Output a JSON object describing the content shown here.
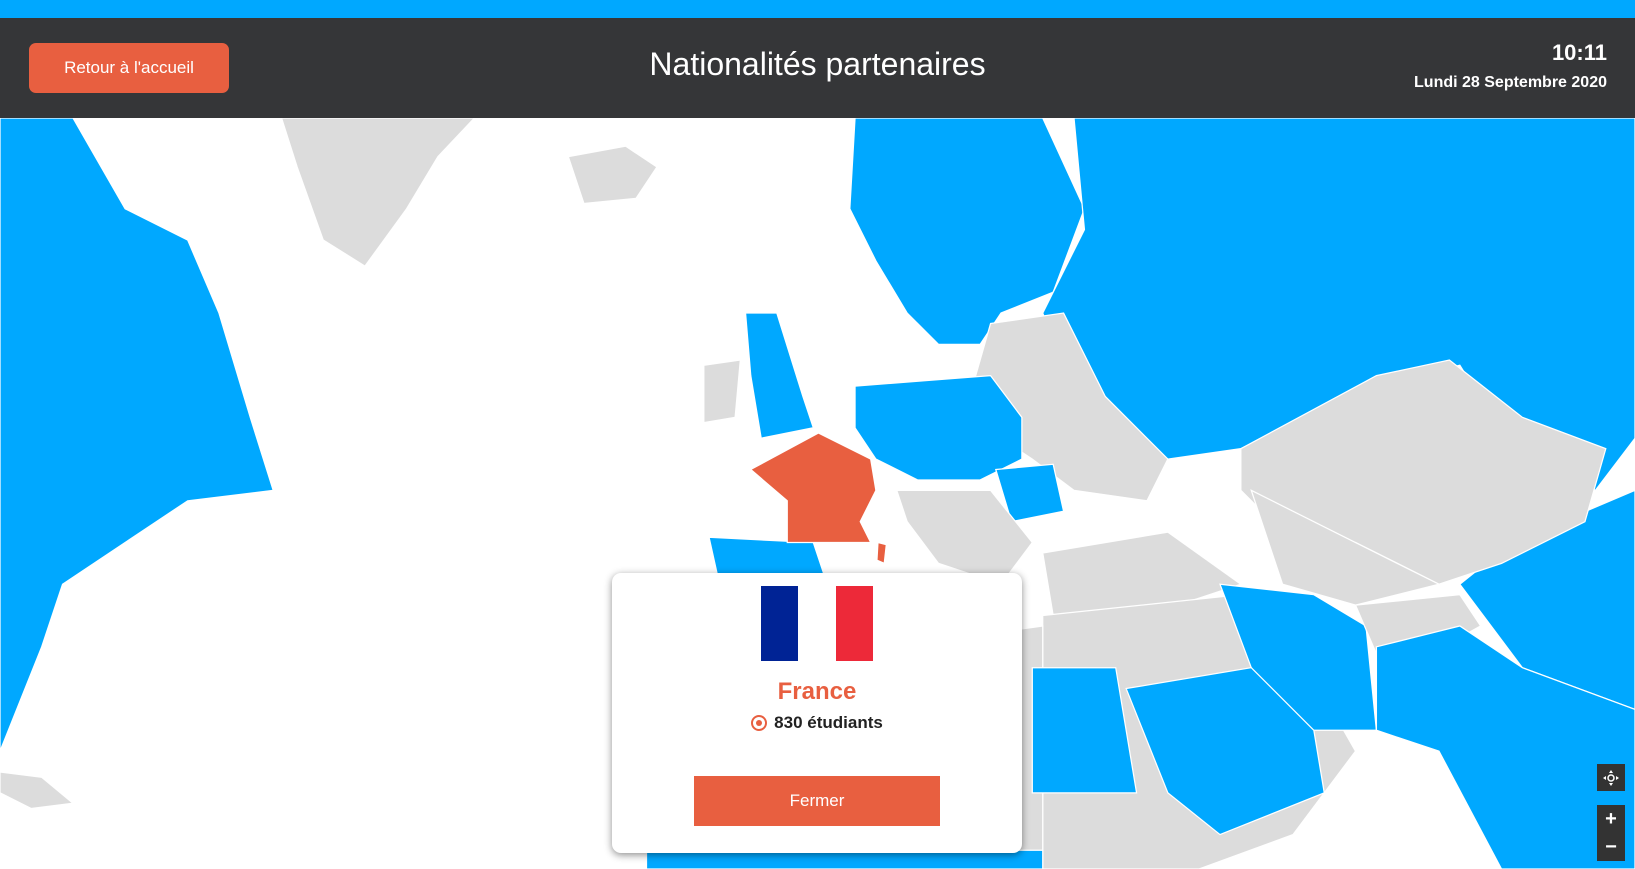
{
  "header": {
    "home_button": "Retour à l'accueil",
    "title": "Nationalités partenaires",
    "time": "10:11",
    "date": "Lundi 28 Septembre 2020"
  },
  "map": {
    "partner_color": "#00a8ff",
    "other_color": "#dcdcdc",
    "selected_color": "#e85f40",
    "selected_country": "France"
  },
  "popup": {
    "country": "France",
    "students": "830 étudiants",
    "close_button": "Fermer",
    "flag_colors": [
      "#002395",
      "#ffffff",
      "#ed2939"
    ]
  },
  "controls": {
    "recenter_icon": "recenter-icon",
    "zoom_in": "+",
    "zoom_out": "−"
  },
  "colors": {
    "accent": "#e85f40",
    "header_bg": "#353638",
    "top_strip": "#00a8ff"
  }
}
